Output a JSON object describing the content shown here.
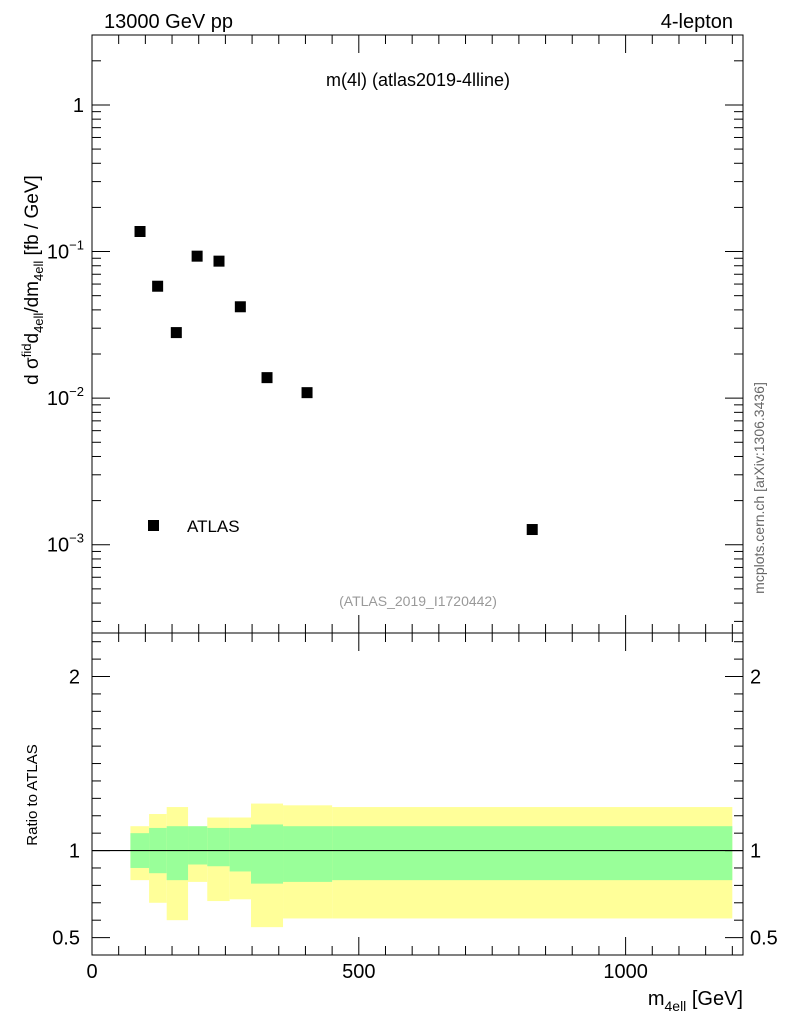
{
  "header": {
    "energy_label": "13000 GeV pp",
    "process_label": "4-lepton"
  },
  "side_label": "mcplots.cern.ch [arXiv:1306.3436]",
  "chart_data": [
    {
      "type": "scatter",
      "title": "m(4l) (atlas2019-4lline)",
      "analysis_label": "(ATLAS_2019_I1720442)",
      "ylabel_parts": [
        "d σ",
        "fid",
        "4ell",
        "/dm",
        "4ell",
        " [fb / GeV]"
      ],
      "yscale": "log",
      "xlim": [
        0,
        1220
      ],
      "ylim": [
        0.00025,
        3
      ],
      "ytick_labels": [
        {
          "value": 1,
          "mantissa": "1",
          "exp": ""
        },
        {
          "value": 0.1,
          "mantissa": "10",
          "exp": "−1"
        },
        {
          "value": 0.01,
          "mantissa": "10",
          "exp": "−2"
        },
        {
          "value": 0.001,
          "mantissa": "10",
          "exp": "−3"
        }
      ],
      "legend": {
        "label": "ATLAS",
        "placement": "bottom-left"
      },
      "series": [
        {
          "name": "ATLAS",
          "x": [
            90,
            123,
            158,
            197,
            238,
            278,
            328,
            403,
            825
          ],
          "y": [
            0.137,
            0.058,
            0.028,
            0.093,
            0.086,
            0.042,
            0.0138,
            0.0109,
            0.00127
          ]
        }
      ]
    },
    {
      "type": "area",
      "ylabel": "Ratio to ATLAS",
      "xlabel_parts": [
        "m",
        "4ell",
        " [GeV]"
      ],
      "xlim": [
        0,
        1220
      ],
      "ylim": [
        0.4,
        2.25
      ],
      "xticks": [
        0,
        500,
        1000
      ],
      "yticks": [
        0.5,
        1,
        2
      ],
      "reference_line": 1,
      "bands": {
        "colors": {
          "outer": "#ffff99",
          "inner": "#99ff99"
        },
        "bins": [
          {
            "x0": 72,
            "x1": 107,
            "inner": [
              0.9,
              1.1
            ],
            "outer": [
              0.83,
              1.14
            ]
          },
          {
            "x0": 107,
            "x1": 140,
            "inner": [
              0.87,
              1.13
            ],
            "outer": [
              0.7,
              1.21
            ]
          },
          {
            "x0": 140,
            "x1": 180,
            "inner": [
              0.83,
              1.14
            ],
            "outer": [
              0.6,
              1.25
            ]
          },
          {
            "x0": 180,
            "x1": 216,
            "inner": [
              0.92,
              1.14
            ],
            "outer": [
              0.82,
              1.13
            ]
          },
          {
            "x0": 216,
            "x1": 258,
            "inner": [
              0.91,
              1.13
            ],
            "outer": [
              0.71,
              1.19
            ]
          },
          {
            "x0": 258,
            "x1": 298,
            "inner": [
              0.88,
              1.13
            ],
            "outer": [
              0.72,
              1.19
            ]
          },
          {
            "x0": 298,
            "x1": 358,
            "inner": [
              0.81,
              1.15
            ],
            "outer": [
              0.56,
              1.27
            ]
          },
          {
            "x0": 358,
            "x1": 450,
            "inner": [
              0.82,
              1.14
            ],
            "outer": [
              0.61,
              1.26
            ]
          },
          {
            "x0": 450,
            "x1": 1200,
            "inner": [
              0.83,
              1.14
            ],
            "outer": [
              0.61,
              1.25
            ]
          }
        ]
      }
    }
  ]
}
